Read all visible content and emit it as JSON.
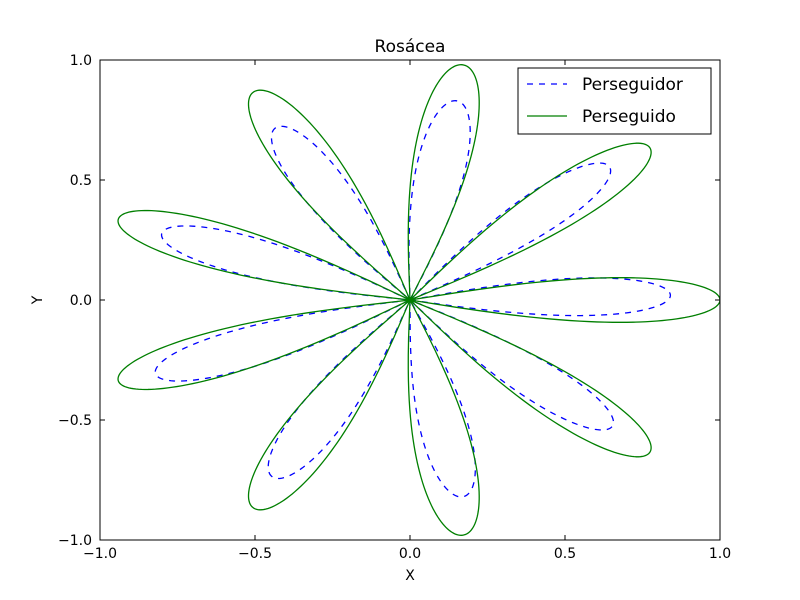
{
  "chart_data": {
    "type": "line",
    "title": "Rosácea",
    "xlabel": "X",
    "ylabel": "Y",
    "xlim": [
      -1.0,
      1.0
    ],
    "ylim": [
      -1.0,
      1.0
    ],
    "xticks": [
      -1.0,
      -0.5,
      0.0,
      0.5,
      1.0
    ],
    "yticks": [
      -1.0,
      -0.5,
      0.0,
      0.5,
      1.0
    ],
    "xtick_labels": [
      "−1.0",
      "−0.5",
      "0.0",
      "0.5",
      "1.0"
    ],
    "ytick_labels": [
      "−1.0",
      "−0.5",
      "0.0",
      "0.5",
      "1.0"
    ],
    "grid": false,
    "legend_position": "top-right",
    "series": [
      {
        "name": "Perseguidor",
        "color": "#0000ff",
        "style": "dashed",
        "petals": [
          {
            "tip_x": 0.84,
            "tip_y": 0.02
          },
          {
            "tip_x": 0.64,
            "tip_y": 0.56
          },
          {
            "tip_x": 0.15,
            "tip_y": 0.83
          },
          {
            "tip_x": -0.43,
            "tip_y": 0.72
          },
          {
            "tip_x": -0.8,
            "tip_y": 0.28
          },
          {
            "tip_x": -0.82,
            "tip_y": -0.31
          },
          {
            "tip_x": -0.44,
            "tip_y": -0.74
          },
          {
            "tip_x": 0.17,
            "tip_y": -0.82
          },
          {
            "tip_x": 0.65,
            "tip_y": -0.53
          }
        ]
      },
      {
        "name": "Perseguido",
        "color": "#007f00",
        "style": "solid",
        "petals": [
          {
            "tip_x": 1.0,
            "tip_y": 0.0
          },
          {
            "tip_x": 0.77,
            "tip_y": 0.64
          },
          {
            "tip_x": 0.17,
            "tip_y": 0.98
          },
          {
            "tip_x": -0.5,
            "tip_y": 0.87
          },
          {
            "tip_x": -0.94,
            "tip_y": 0.34
          },
          {
            "tip_x": -0.94,
            "tip_y": -0.34
          },
          {
            "tip_x": -0.5,
            "tip_y": -0.87
          },
          {
            "tip_x": 0.17,
            "tip_y": -0.98
          },
          {
            "tip_x": 0.77,
            "tip_y": -0.64
          }
        ]
      }
    ]
  }
}
